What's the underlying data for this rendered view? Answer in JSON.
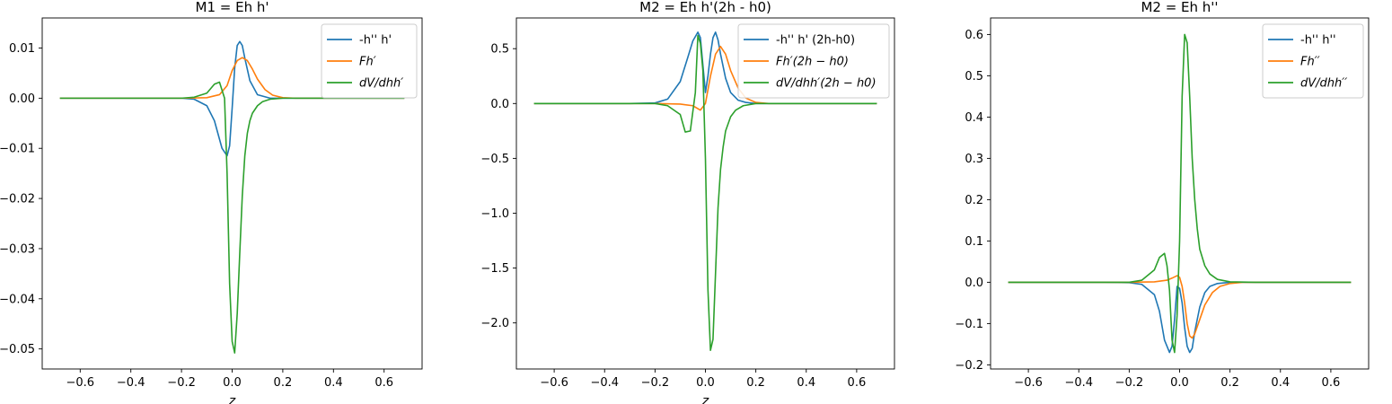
{
  "chart_data": [
    {
      "type": "line",
      "title": "M1 = Eh h'",
      "xlabel": "z",
      "xlim": [
        -0.75,
        0.75
      ],
      "ylim": [
        -0.054,
        0.016
      ],
      "xticks": [
        -0.6,
        -0.4,
        -0.2,
        0.0,
        0.2,
        0.4,
        0.6
      ],
      "xtick_labels": [
        "−0.6",
        "−0.4",
        "−0.2",
        "0.0",
        "0.2",
        "0.4",
        "0.6"
      ],
      "yticks": [
        0.01,
        0.0,
        -0.01,
        -0.02,
        -0.03,
        -0.04,
        -0.05
      ],
      "ytick_labels": [
        "0.01",
        "0.00",
        "−0.01",
        "−0.02",
        "−0.03",
        "−0.04",
        "−0.05"
      ],
      "legend_position": "top-right",
      "grid": false,
      "series": [
        {
          "name": "-h'' h'",
          "color": "#1f77b4",
          "x": [
            -0.68,
            -0.3,
            -0.2,
            -0.15,
            -0.1,
            -0.07,
            -0.04,
            -0.02,
            -0.01,
            0.0,
            0.01,
            0.02,
            0.03,
            0.04,
            0.05,
            0.07,
            0.1,
            0.15,
            0.2,
            0.3,
            0.68
          ],
          "y": [
            0.0,
            0.0,
            0.0,
            -0.0002,
            -0.0015,
            -0.0045,
            -0.01,
            -0.0115,
            -0.0095,
            -0.002,
            0.006,
            0.0105,
            0.0113,
            0.0105,
            0.008,
            0.0035,
            0.0007,
            0.0,
            0.0,
            0.0,
            0.0
          ]
        },
        {
          "name": "Fh′",
          "color": "#ff7f0e",
          "x": [
            -0.68,
            -0.2,
            -0.1,
            -0.05,
            -0.02,
            0.0,
            0.02,
            0.04,
            0.06,
            0.08,
            0.1,
            0.13,
            0.16,
            0.2,
            0.25,
            0.68
          ],
          "y": [
            0.0,
            0.0,
            0.0001,
            0.0007,
            0.0025,
            0.0055,
            0.0075,
            0.0081,
            0.0075,
            0.0058,
            0.0038,
            0.0017,
            0.0006,
            0.0001,
            0.0,
            0.0
          ]
        },
        {
          "name": "dV/dhh′",
          "color": "#2ca02c",
          "x": [
            -0.68,
            -0.2,
            -0.15,
            -0.1,
            -0.07,
            -0.05,
            -0.03,
            -0.02,
            -0.01,
            0.0,
            0.01,
            0.02,
            0.03,
            0.04,
            0.05,
            0.06,
            0.07,
            0.08,
            0.1,
            0.12,
            0.15,
            0.2,
            0.3,
            0.68
          ],
          "y": [
            0.0,
            0.0,
            0.0002,
            0.001,
            0.0028,
            0.0032,
            0.0,
            -0.015,
            -0.037,
            -0.0485,
            -0.0508,
            -0.043,
            -0.031,
            -0.0195,
            -0.0115,
            -0.007,
            -0.0045,
            -0.003,
            -0.0015,
            -0.0007,
            -0.0002,
            0.0,
            0.0,
            0.0
          ]
        }
      ]
    },
    {
      "type": "line",
      "title": "M2 = Eh h'(2h - h0)",
      "xlabel": "z",
      "xlim": [
        -0.75,
        0.75
      ],
      "ylim": [
        -2.42,
        0.78
      ],
      "xticks": [
        -0.6,
        -0.4,
        -0.2,
        0.0,
        0.2,
        0.4,
        0.6
      ],
      "xtick_labels": [
        "−0.6",
        "−0.4",
        "−0.2",
        "0.0",
        "0.2",
        "0.4",
        "0.6"
      ],
      "yticks": [
        0.5,
        0.0,
        -0.5,
        -1.0,
        -1.5,
        -2.0
      ],
      "ytick_labels": [
        "0.5",
        "0.0",
        "−0.5",
        "−1.0",
        "−1.5",
        "−2.0"
      ],
      "legend_position": "top-right",
      "grid": false,
      "series": [
        {
          "name": "-h'' h' (2h-h0)",
          "color": "#1f77b4",
          "x": [
            -0.68,
            -0.3,
            -0.2,
            -0.15,
            -0.1,
            -0.07,
            -0.05,
            -0.03,
            -0.02,
            -0.01,
            0.0,
            0.01,
            0.02,
            0.03,
            0.04,
            0.05,
            0.06,
            0.08,
            0.1,
            0.13,
            0.16,
            0.2,
            0.3,
            0.68
          ],
          "y": [
            0.0,
            0.0,
            0.005,
            0.04,
            0.2,
            0.42,
            0.57,
            0.65,
            0.6,
            0.35,
            0.1,
            0.25,
            0.45,
            0.6,
            0.65,
            0.58,
            0.45,
            0.23,
            0.1,
            0.03,
            0.01,
            0.0,
            0.0,
            0.0
          ]
        },
        {
          "name": "Fh′(2h − h0)",
          "color": "#ff7f0e",
          "x": [
            -0.68,
            -0.2,
            -0.1,
            -0.05,
            -0.02,
            0.0,
            0.02,
            0.04,
            0.06,
            0.08,
            0.1,
            0.13,
            0.16,
            0.2,
            0.25,
            0.68
          ],
          "y": [
            0.0,
            0.0,
            -0.005,
            -0.02,
            -0.06,
            0.0,
            0.25,
            0.45,
            0.52,
            0.45,
            0.3,
            0.14,
            0.05,
            0.01,
            0.0,
            0.0
          ]
        },
        {
          "name": "dV/dhh′(2h − h0)",
          "color": "#2ca02c",
          "x": [
            -0.68,
            -0.2,
            -0.15,
            -0.1,
            -0.08,
            -0.06,
            -0.04,
            -0.03,
            -0.02,
            -0.01,
            0.0,
            0.01,
            0.02,
            0.03,
            0.04,
            0.05,
            0.06,
            0.07,
            0.08,
            0.1,
            0.12,
            0.15,
            0.2,
            0.3,
            0.68
          ],
          "y": [
            0.0,
            0.0,
            -0.02,
            -0.1,
            -0.26,
            -0.25,
            0.1,
            0.62,
            0.55,
            0.3,
            -0.5,
            -1.7,
            -2.25,
            -2.15,
            -1.55,
            -0.95,
            -0.6,
            -0.4,
            -0.25,
            -0.12,
            -0.06,
            -0.02,
            0.0,
            0.0,
            0.0
          ]
        }
      ]
    },
    {
      "type": "line",
      "title": "M2 = Eh h''",
      "xlabel": "",
      "xlim": [
        -0.75,
        0.75
      ],
      "ylim": [
        -0.21,
        0.64
      ],
      "xticks": [
        -0.6,
        -0.4,
        -0.2,
        0.0,
        0.2,
        0.4,
        0.6
      ],
      "xtick_labels": [
        "−0.6",
        "−0.4",
        "−0.2",
        "0.0",
        "0.2",
        "0.4",
        "0.6"
      ],
      "yticks": [
        0.6,
        0.5,
        0.4,
        0.3,
        0.2,
        0.1,
        0.0,
        -0.1,
        -0.2
      ],
      "ytick_labels": [
        "0.6",
        "0.5",
        "0.4",
        "0.3",
        "0.2",
        "0.1",
        "0.0",
        "−0.1",
        "−0.2"
      ],
      "legend_position": "top-right",
      "grid": false,
      "series": [
        {
          "name": "-h'' h''",
          "color": "#1f77b4",
          "x": [
            -0.68,
            -0.3,
            -0.2,
            -0.15,
            -0.1,
            -0.08,
            -0.06,
            -0.04,
            -0.03,
            -0.02,
            -0.01,
            0.0,
            0.01,
            0.02,
            0.03,
            0.04,
            0.05,
            0.06,
            0.08,
            0.1,
            0.12,
            0.15,
            0.2,
            0.3,
            0.68
          ],
          "y": [
            0.0,
            0.0,
            -0.001,
            -0.005,
            -0.03,
            -0.07,
            -0.14,
            -0.17,
            -0.155,
            -0.09,
            -0.01,
            -0.015,
            -0.05,
            -0.11,
            -0.155,
            -0.17,
            -0.16,
            -0.12,
            -0.06,
            -0.025,
            -0.01,
            -0.003,
            0.0,
            0.0,
            0.0
          ]
        },
        {
          "name": "Fh′′",
          "color": "#ff7f0e",
          "x": [
            -0.68,
            -0.2,
            -0.1,
            -0.05,
            -0.03,
            -0.01,
            0.0,
            0.01,
            0.02,
            0.03,
            0.04,
            0.05,
            0.06,
            0.08,
            0.1,
            0.13,
            0.16,
            0.2,
            0.25,
            0.68
          ],
          "y": [
            0.0,
            0.0,
            0.001,
            0.005,
            0.01,
            0.016,
            0.012,
            -0.01,
            -0.05,
            -0.1,
            -0.13,
            -0.135,
            -0.125,
            -0.09,
            -0.055,
            -0.025,
            -0.01,
            -0.003,
            0.0,
            0.0
          ]
        },
        {
          "name": "dV/dhh′′",
          "color": "#2ca02c",
          "x": [
            -0.68,
            -0.2,
            -0.15,
            -0.1,
            -0.08,
            -0.06,
            -0.05,
            -0.04,
            -0.03,
            -0.02,
            -0.01,
            0.0,
            0.01,
            0.02,
            0.03,
            0.04,
            0.05,
            0.06,
            0.07,
            0.08,
            0.1,
            0.12,
            0.15,
            0.2,
            0.3,
            0.68
          ],
          "y": [
            0.0,
            0.0,
            0.005,
            0.03,
            0.06,
            0.07,
            0.04,
            -0.02,
            -0.14,
            -0.17,
            -0.08,
            0.1,
            0.45,
            0.6,
            0.58,
            0.45,
            0.3,
            0.2,
            0.13,
            0.08,
            0.04,
            0.02,
            0.007,
            0.001,
            0.0,
            0.0
          ]
        }
      ]
    }
  ]
}
